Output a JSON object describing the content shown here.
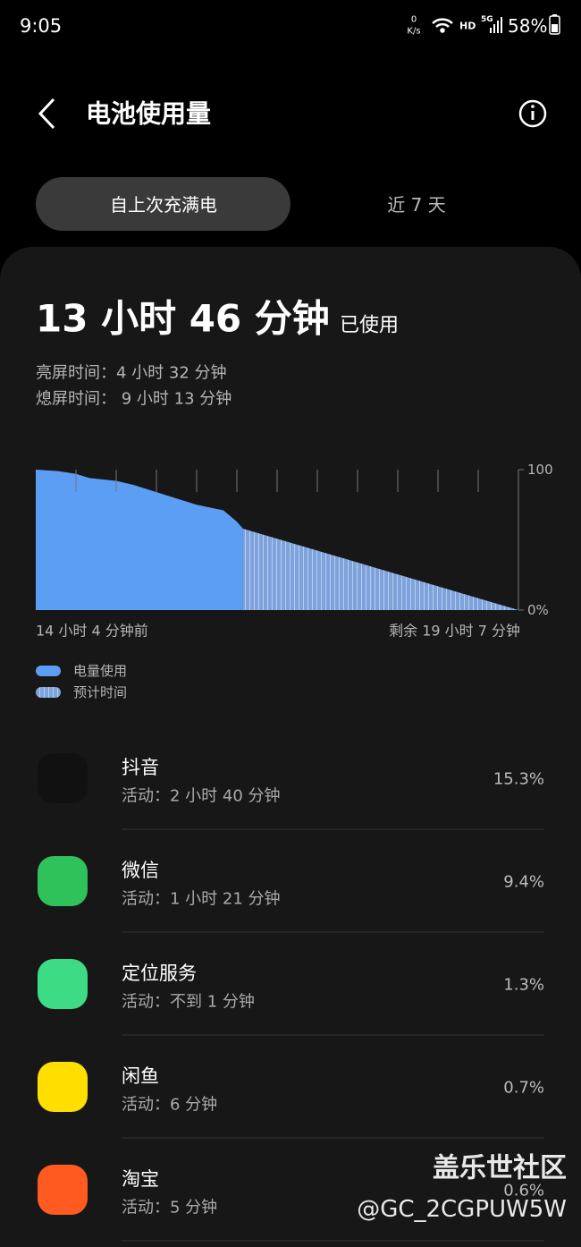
{
  "status_bar": {
    "time": "9:05",
    "net_speed": "0",
    "net_unit": "K/s",
    "hd": "HD",
    "signal": "5G",
    "battery": "58%"
  },
  "header": {
    "title": "电池使用量"
  },
  "tabs": [
    "自上次充满电",
    "近 7 天"
  ],
  "summary": {
    "used_time": "13 小时 46 分钟",
    "used_label": "已使用",
    "screen_on": "亮屏时间：4 小时 32 分钟",
    "screen_off": "熄屏时间： 9 小时 13 分钟"
  },
  "chart_data": {
    "type": "area",
    "x_start_label": "14 小时 4 分钟前",
    "x_end_label": "剩余 19 小时 7 分钟",
    "xlim": [
      0,
      33.18
    ],
    "ylim": [
      0,
      100
    ],
    "yticks": [
      100,
      {
        "value": 0,
        "label": "0%"
      }
    ],
    "series": [
      {
        "name": "电量使用",
        "color": "#5b9ef3",
        "x": [
          0,
          1.54,
          2.77,
          3.69,
          5.53,
          6.76,
          7.07,
          9.83,
          11.06,
          12.9,
          13.82,
          14.25
        ],
        "values": [
          100,
          99,
          97,
          94,
          92,
          89,
          88,
          79,
          75,
          71,
          63,
          58
        ]
      },
      {
        "name": "预计时间",
        "color": "#7ea3dc",
        "x": [
          14.25,
          33.18
        ],
        "values": [
          58,
          0
        ]
      }
    ]
  },
  "apps": [
    {
      "name": "抖音",
      "activity": "活动：2 小时 40 分钟",
      "percent": "15.3%"
    },
    {
      "name": "微信",
      "activity": "活动：1 小时 21 分钟",
      "percent": "9.4%"
    },
    {
      "name": "定位服务",
      "activity": "活动：不到 1 分钟",
      "percent": "1.3%"
    },
    {
      "name": "闲鱼",
      "activity": "活动：6 分钟",
      "percent": "0.7%"
    },
    {
      "name": "淘宝",
      "activity": "活动：5 分钟",
      "percent": "0.6%"
    }
  ],
  "watermark": {
    "brand": "盖乐世社区",
    "user": "@GC_2CGPUW5W"
  }
}
